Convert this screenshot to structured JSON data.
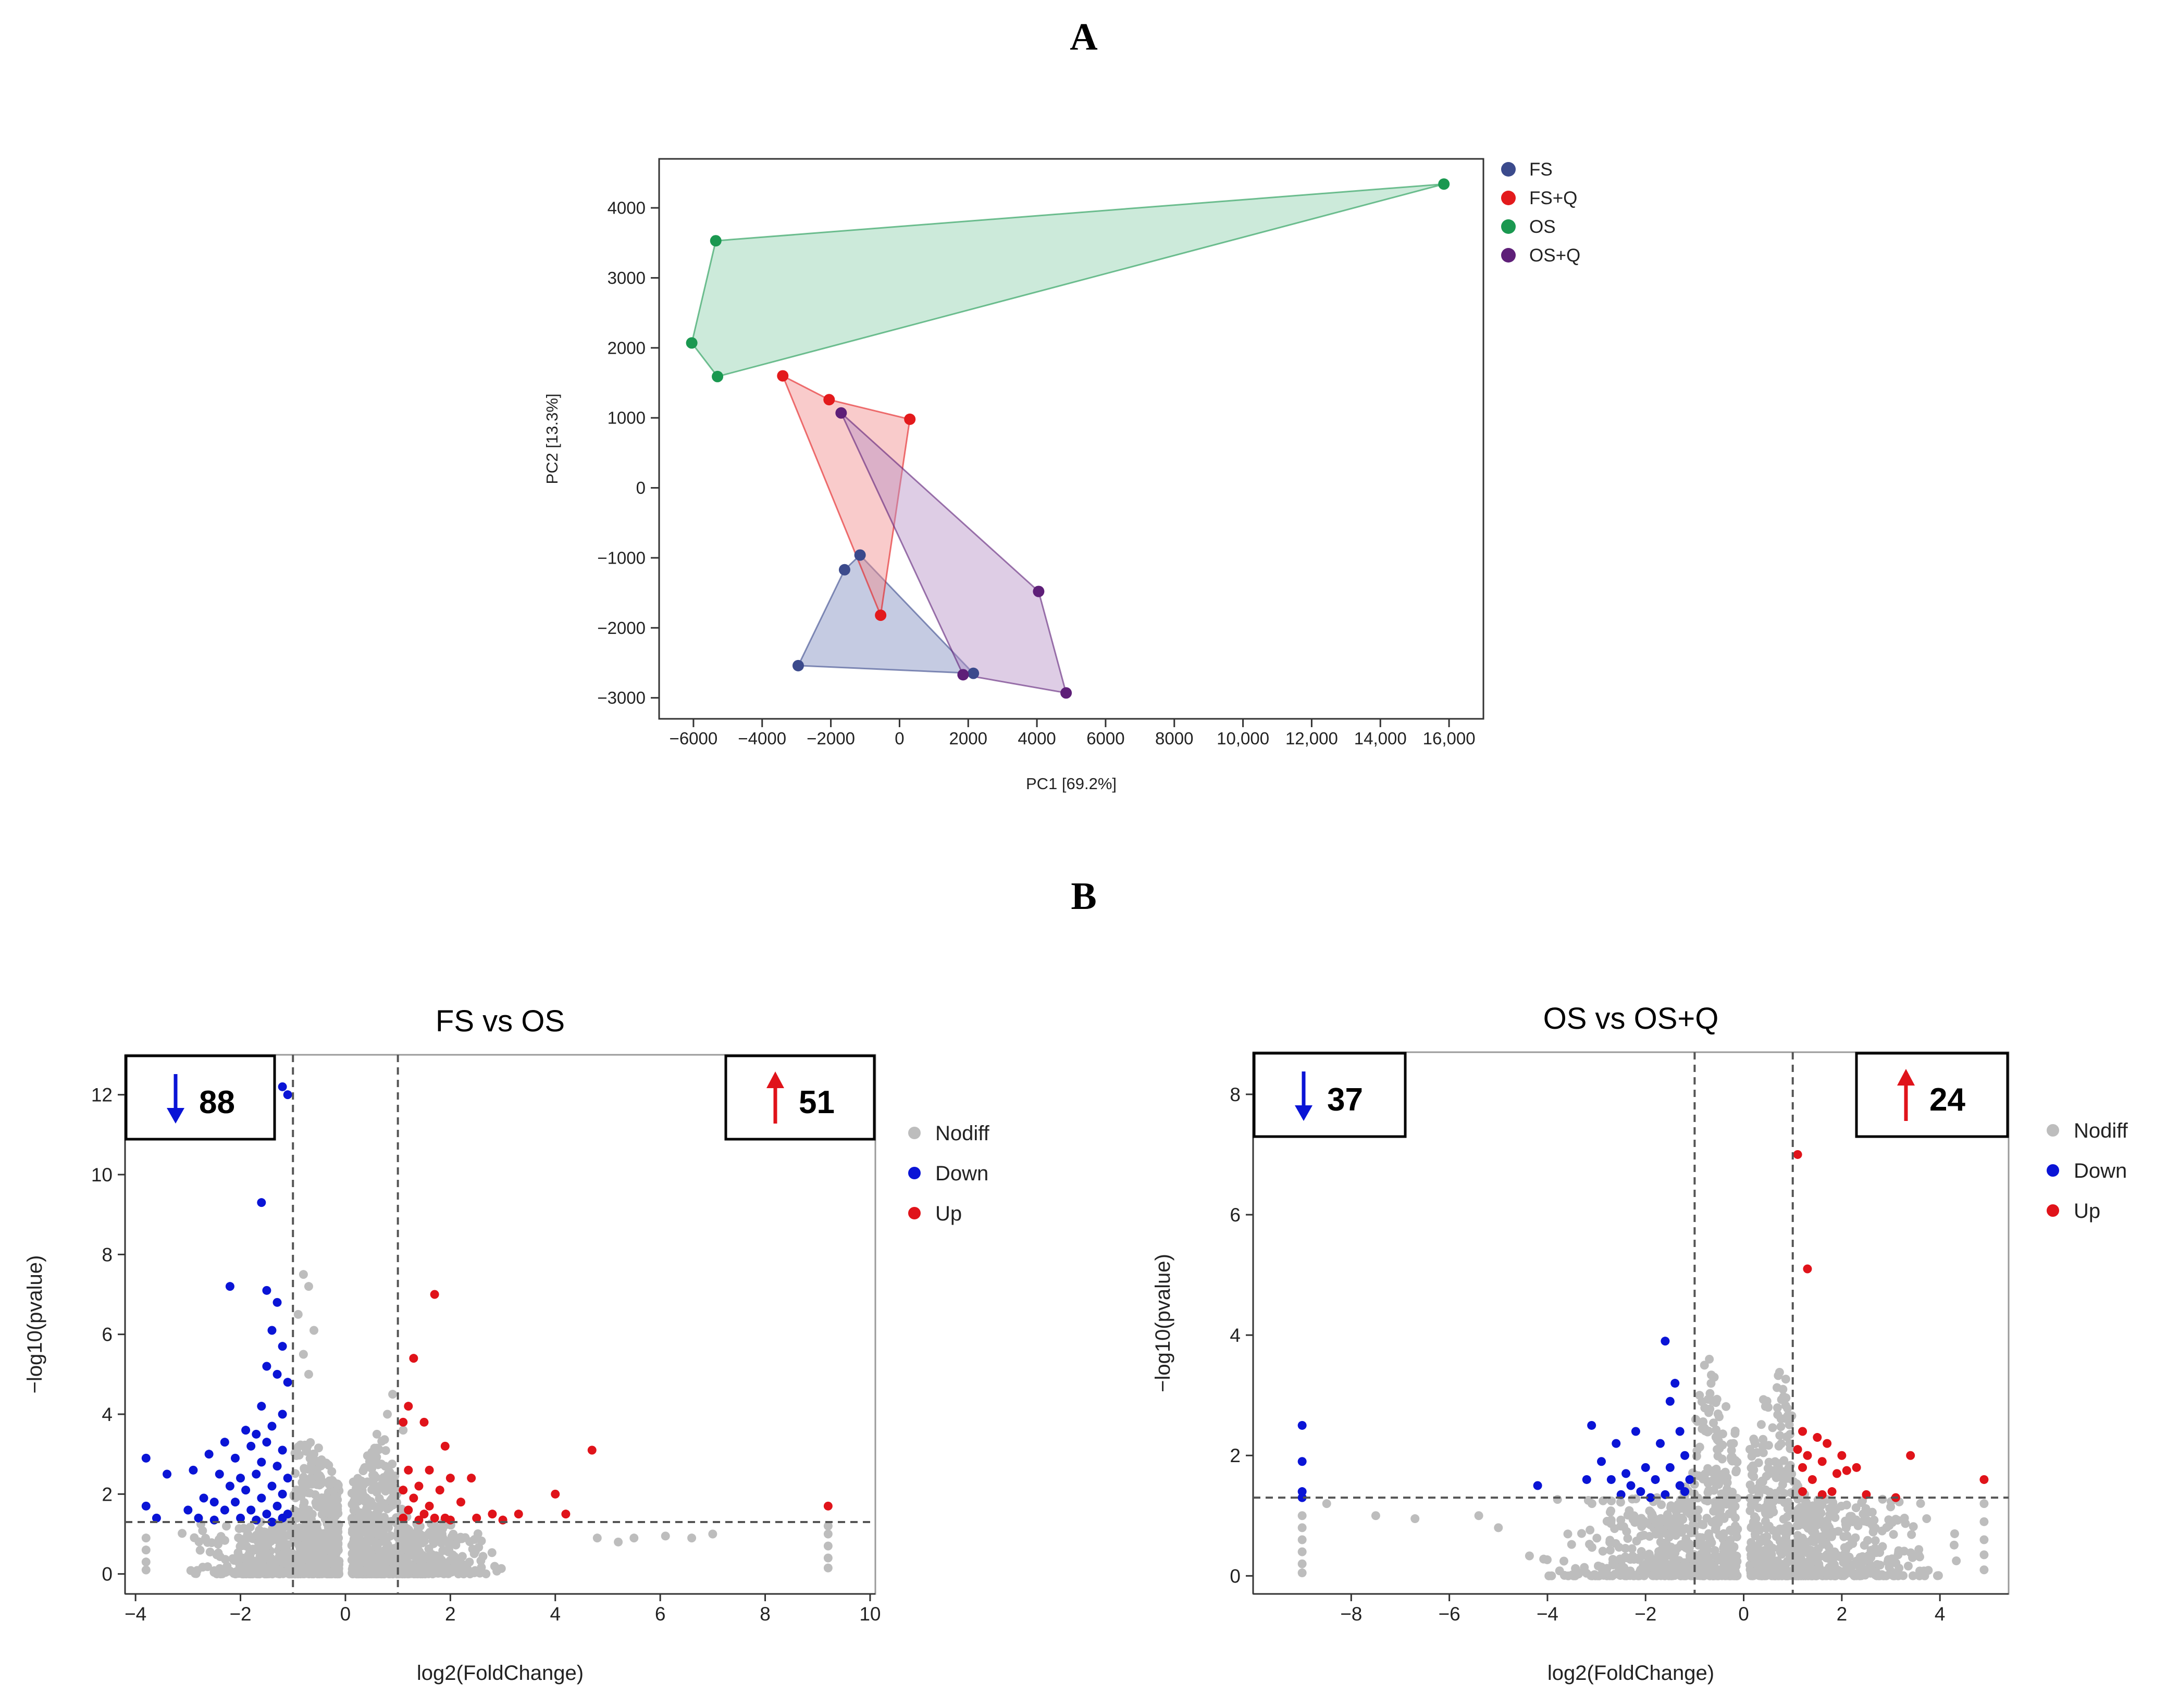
{
  "panel_a_label": "A",
  "panel_b_label": "B",
  "chart_data": [
    {
      "id": "pca",
      "type": "scatter",
      "title": "",
      "xlabel": "PC1 [69.2%]",
      "ylabel": "PC2 [13.3%]",
      "xlim": [
        -7000,
        17000
      ],
      "ylim": [
        -3300,
        4700
      ],
      "xticks": [
        -6000,
        -4000,
        -2000,
        0,
        2000,
        4000,
        6000,
        8000,
        10000,
        12000,
        14000,
        16000
      ],
      "xtick_labels": [
        "−6000",
        "−4000",
        "−2000",
        "0",
        "2000",
        "4000",
        "6000",
        "8000",
        "10,000",
        "12,000",
        "14,000",
        "16,000"
      ],
      "yticks": [
        -3000,
        -2000,
        -1000,
        0,
        1000,
        2000,
        3000,
        4000
      ],
      "ytick_labels": [
        "−3000",
        "−2000",
        "−1000",
        "0",
        "1000",
        "2000",
        "3000",
        "4000"
      ],
      "legend_position": "outside-right",
      "series": [
        {
          "name": "FS",
          "color": "#3b4a8c",
          "fill": "#7f8cbf",
          "points": [
            [
              -1600,
              -1170
            ],
            [
              -1150,
              -960
            ],
            [
              2150,
              -2650
            ],
            [
              -2950,
              -2540
            ]
          ]
        },
        {
          "name": "FS+Q",
          "color": "#e31a1c",
          "fill": "#f28b8b",
          "points": [
            [
              -3400,
              1600
            ],
            [
              -2050,
              1260
            ],
            [
              300,
              980
            ],
            [
              -550,
              -1820
            ]
          ]
        },
        {
          "name": "OS",
          "color": "#1a9850",
          "fill": "#8fd1ad",
          "points": [
            [
              -5350,
              3530
            ],
            [
              15850,
              4340
            ],
            [
              -5300,
              1590
            ],
            [
              -6050,
              2070
            ]
          ]
        },
        {
          "name": "OS+Q",
          "color": "#5e1f78",
          "fill": "#b590c6",
          "points": [
            [
              -1700,
              1070
            ],
            [
              4050,
              -1480
            ],
            [
              4850,
              -2930
            ],
            [
              1850,
              -2670
            ]
          ]
        }
      ]
    },
    {
      "id": "volcano1",
      "type": "scatter",
      "title": "FS vs OS",
      "xlabel": "log2(FoldChange)",
      "ylabel": "−log10(pvalue)",
      "xlim": [
        -4.2,
        10.1
      ],
      "ylim": [
        -0.5,
        13.0
      ],
      "xticks": [
        -4,
        -2,
        0,
        2,
        4,
        6,
        8,
        10
      ],
      "xtick_labels": [
        "−4",
        "−2",
        "0",
        "2",
        "4",
        "6",
        "8",
        "10"
      ],
      "yticks": [
        0,
        2,
        4,
        6,
        8,
        10,
        12
      ],
      "ytick_labels": [
        "0",
        "2",
        "4",
        "6",
        "8",
        "10",
        "12"
      ],
      "thresholds": {
        "fc": [
          -1,
          1
        ],
        "p": 1.3
      },
      "down_count": "88",
      "up_count": "51",
      "legend": [
        "Nodiff",
        "Down",
        "Up"
      ],
      "colors": {
        "Nodiff": "#bdbdbd",
        "Down": "#0a14d6",
        "Up": "#e0131a"
      },
      "down_points": [
        [
          -1.2,
          12.2
        ],
        [
          -1.1,
          12.0
        ],
        [
          -1.6,
          9.3
        ],
        [
          -2.2,
          7.2
        ],
        [
          -1.5,
          7.1
        ],
        [
          -1.3,
          6.8
        ],
        [
          -1.4,
          6.1
        ],
        [
          -1.2,
          5.7
        ],
        [
          -1.5,
          5.2
        ],
        [
          -1.3,
          5.0
        ],
        [
          -1.1,
          4.8
        ],
        [
          -1.6,
          4.2
        ],
        [
          -1.2,
          4.0
        ],
        [
          -1.9,
          3.6
        ],
        [
          -1.7,
          3.5
        ],
        [
          -1.4,
          3.7
        ],
        [
          -2.3,
          3.3
        ],
        [
          -1.8,
          3.2
        ],
        [
          -1.5,
          3.3
        ],
        [
          -1.2,
          3.1
        ],
        [
          -2.6,
          3.0
        ],
        [
          -2.1,
          2.9
        ],
        [
          -1.6,
          2.8
        ],
        [
          -1.3,
          2.7
        ],
        [
          -3.8,
          2.9
        ],
        [
          -3.4,
          2.5
        ],
        [
          -2.9,
          2.6
        ],
        [
          -2.4,
          2.5
        ],
        [
          -2.0,
          2.4
        ],
        [
          -1.7,
          2.5
        ],
        [
          -1.1,
          2.4
        ],
        [
          -2.2,
          2.2
        ],
        [
          -1.9,
          2.1
        ],
        [
          -1.4,
          2.2
        ],
        [
          -1.2,
          2.0
        ],
        [
          -2.7,
          1.9
        ],
        [
          -2.5,
          1.8
        ],
        [
          -2.1,
          1.8
        ],
        [
          -1.6,
          1.9
        ],
        [
          -1.3,
          1.7
        ],
        [
          -3.8,
          1.7
        ],
        [
          -3.0,
          1.6
        ],
        [
          -2.3,
          1.6
        ],
        [
          -1.8,
          1.6
        ],
        [
          -1.5,
          1.5
        ],
        [
          -1.1,
          1.5
        ],
        [
          -2.8,
          1.4
        ],
        [
          -2.0,
          1.4
        ],
        [
          -1.7,
          1.35
        ],
        [
          -1.2,
          1.4
        ],
        [
          -3.6,
          1.4
        ],
        [
          -2.5,
          1.35
        ],
        [
          -1.4,
          1.3
        ]
      ],
      "up_points": [
        [
          1.7,
          7.0
        ],
        [
          1.3,
          5.4
        ],
        [
          1.2,
          4.2
        ],
        [
          1.5,
          3.8
        ],
        [
          1.1,
          3.8
        ],
        [
          1.9,
          3.2
        ],
        [
          4.7,
          3.1
        ],
        [
          1.6,
          2.6
        ],
        [
          1.2,
          2.6
        ],
        [
          2.0,
          2.4
        ],
        [
          1.4,
          2.2
        ],
        [
          1.8,
          2.1
        ],
        [
          2.4,
          2.4
        ],
        [
          1.1,
          2.1
        ],
        [
          1.3,
          1.9
        ],
        [
          2.2,
          1.8
        ],
        [
          1.6,
          1.7
        ],
        [
          1.2,
          1.6
        ],
        [
          2.8,
          1.5
        ],
        [
          4.0,
          2.0
        ],
        [
          1.5,
          1.5
        ],
        [
          1.9,
          1.4
        ],
        [
          1.1,
          1.4
        ],
        [
          2.5,
          1.4
        ],
        [
          3.3,
          1.5
        ],
        [
          4.2,
          1.5
        ],
        [
          9.2,
          1.7
        ],
        [
          1.4,
          1.35
        ],
        [
          2.0,
          1.35
        ],
        [
          3.0,
          1.35
        ],
        [
          1.7,
          1.4
        ]
      ],
      "nodiff_points": [
        [
          -0.8,
          7.5
        ],
        [
          -0.7,
          7.2
        ],
        [
          -0.9,
          6.5
        ],
        [
          -0.6,
          6.1
        ],
        [
          -0.8,
          5.5
        ],
        [
          -0.7,
          5.0
        ],
        [
          1.1,
          3.6
        ],
        [
          0.9,
          4.5
        ],
        [
          0.8,
          4.0
        ],
        [
          0.6,
          3.5
        ],
        [
          -3.8,
          0.9
        ],
        [
          -3.8,
          0.6
        ],
        [
          -3.8,
          0.3
        ],
        [
          -3.8,
          0.1
        ],
        [
          9.2,
          1.2
        ],
        [
          9.2,
          1.0
        ],
        [
          9.2,
          0.7
        ],
        [
          9.2,
          0.4
        ],
        [
          9.2,
          0.15
        ],
        [
          4.8,
          0.9
        ],
        [
          5.2,
          0.8
        ],
        [
          5.5,
          0.9
        ],
        [
          6.1,
          0.95
        ],
        [
          6.6,
          0.9
        ],
        [
          7.0,
          1.0
        ]
      ],
      "nodiff_generated": 1600
    },
    {
      "id": "volcano2",
      "type": "scatter",
      "title": "OS vs OS+Q",
      "xlabel": "log2(FoldChange)",
      "ylabel": "−log10(pvalue)",
      "xlim": [
        -10.0,
        5.4
      ],
      "ylim": [
        -0.3,
        8.7
      ],
      "xticks": [
        -8,
        -6,
        -4,
        -2,
        0,
        2,
        4
      ],
      "xtick_labels": [
        "−8",
        "−6",
        "−4",
        "−2",
        "0",
        "2",
        "4"
      ],
      "yticks": [
        0,
        2,
        4,
        6,
        8
      ],
      "ytick_labels": [
        "0",
        "2",
        "4",
        "6",
        "8"
      ],
      "thresholds": {
        "fc": [
          -1,
          1
        ],
        "p": 1.3
      },
      "down_count": "37",
      "up_count": "24",
      "legend": [
        "Nodiff",
        "Down",
        "Up"
      ],
      "colors": {
        "Nodiff": "#bdbdbd",
        "Down": "#0a14d6",
        "Up": "#e0131a"
      },
      "down_points": [
        [
          -9.0,
          2.5
        ],
        [
          -9.0,
          1.9
        ],
        [
          -9.0,
          1.4
        ],
        [
          -9.0,
          1.3
        ],
        [
          -1.6,
          3.9
        ],
        [
          -1.4,
          3.2
        ],
        [
          -1.5,
          2.9
        ],
        [
          -3.1,
          2.5
        ],
        [
          -2.2,
          2.4
        ],
        [
          -1.3,
          2.4
        ],
        [
          -2.6,
          2.2
        ],
        [
          -1.7,
          2.2
        ],
        [
          -1.2,
          2.0
        ],
        [
          -2.9,
          1.9
        ],
        [
          -2.0,
          1.8
        ],
        [
          -1.5,
          1.8
        ],
        [
          -2.4,
          1.7
        ],
        [
          -3.2,
          1.6
        ],
        [
          -2.7,
          1.6
        ],
        [
          -1.8,
          1.6
        ],
        [
          -1.1,
          1.6
        ],
        [
          -4.2,
          1.5
        ],
        [
          -2.3,
          1.5
        ],
        [
          -1.3,
          1.5
        ],
        [
          -2.1,
          1.4
        ],
        [
          -2.5,
          1.35
        ],
        [
          -1.6,
          1.35
        ],
        [
          -1.2,
          1.4
        ],
        [
          -1.9,
          1.3
        ]
      ],
      "up_points": [
        [
          1.1,
          7.0
        ],
        [
          1.3,
          5.1
        ],
        [
          1.2,
          2.4
        ],
        [
          1.5,
          2.3
        ],
        [
          1.7,
          2.2
        ],
        [
          1.1,
          2.1
        ],
        [
          2.0,
          2.0
        ],
        [
          3.4,
          2.0
        ],
        [
          1.3,
          2.0
        ],
        [
          1.6,
          1.9
        ],
        [
          2.3,
          1.8
        ],
        [
          1.2,
          1.8
        ],
        [
          1.9,
          1.7
        ],
        [
          2.1,
          1.75
        ],
        [
          4.9,
          1.6
        ],
        [
          1.4,
          1.6
        ],
        [
          1.8,
          1.4
        ],
        [
          1.6,
          1.35
        ],
        [
          2.5,
          1.35
        ],
        [
          3.1,
          1.3
        ],
        [
          1.2,
          1.4
        ]
      ],
      "nodiff_points": [
        [
          -0.7,
          3.6
        ],
        [
          -0.8,
          3.5
        ],
        [
          -0.6,
          3.3
        ],
        [
          -0.9,
          3.0
        ],
        [
          0.8,
          3.1
        ],
        [
          0.5,
          2.8
        ],
        [
          0.9,
          2.6
        ],
        [
          -9.0,
          1.0
        ],
        [
          -9.0,
          0.8
        ],
        [
          -9.0,
          0.6
        ],
        [
          -9.0,
          0.4
        ],
        [
          -9.0,
          0.2
        ],
        [
          -9.0,
          0.05
        ],
        [
          4.9,
          1.2
        ],
        [
          4.9,
          0.9
        ],
        [
          4.9,
          0.6
        ],
        [
          4.9,
          0.35
        ],
        [
          4.9,
          0.1
        ],
        [
          -8.5,
          1.2
        ],
        [
          -7.5,
          1.0
        ],
        [
          -6.7,
          0.95
        ],
        [
          -5.4,
          1.0
        ],
        [
          -5.0,
          0.8
        ],
        [
          4.3,
          0.7
        ]
      ],
      "nodiff_generated": 1400
    }
  ]
}
